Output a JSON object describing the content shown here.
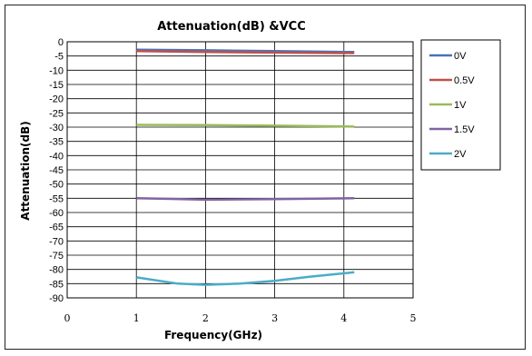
{
  "chart_data": {
    "type": "line",
    "title": "Attenuation(dB) &VCC",
    "xlabel": "Frequency(GHz)",
    "ylabel": "Attenuation(dB)",
    "xlim": [
      0,
      5
    ],
    "ylim": [
      -90,
      0
    ],
    "x_ticks": [
      0,
      1,
      2,
      3,
      4,
      5
    ],
    "y_ticks": [
      0,
      -5,
      -10,
      -15,
      -20,
      -25,
      -30,
      -35,
      -40,
      -45,
      -50,
      -55,
      -60,
      -65,
      -70,
      -75,
      -80,
      -85,
      -90
    ],
    "grid": true,
    "legend_position": "right",
    "series": [
      {
        "name": "0V",
        "color": "#4a72b6",
        "points": [
          [
            1.0,
            -2.8
          ],
          [
            2.0,
            -3.0
          ],
          [
            3.0,
            -3.3
          ],
          [
            4.15,
            -3.6
          ]
        ]
      },
      {
        "name": "0.5V",
        "color": "#c0504d",
        "points": [
          [
            1.0,
            -3.3
          ],
          [
            2.0,
            -3.6
          ],
          [
            3.0,
            -3.8
          ],
          [
            4.15,
            -4.0
          ]
        ]
      },
      {
        "name": "1V",
        "color": "#9bbb59",
        "points": [
          [
            1.0,
            -29.2
          ],
          [
            2.0,
            -29.3
          ],
          [
            3.0,
            -29.5
          ],
          [
            4.15,
            -29.8
          ]
        ]
      },
      {
        "name": "1.5V",
        "color": "#8064a2",
        "points": [
          [
            1.0,
            -55.0
          ],
          [
            1.5,
            -55.2
          ],
          [
            2.0,
            -55.5
          ],
          [
            3.0,
            -55.3
          ],
          [
            4.15,
            -55.0
          ]
        ]
      },
      {
        "name": "2V",
        "color": "#4bacc6",
        "points": [
          [
            1.0,
            -82.8
          ],
          [
            1.6,
            -85.0
          ],
          [
            2.0,
            -85.4
          ],
          [
            2.5,
            -85.0
          ],
          [
            3.0,
            -84.0
          ],
          [
            3.5,
            -82.6
          ],
          [
            4.15,
            -81.0
          ]
        ]
      }
    ]
  }
}
